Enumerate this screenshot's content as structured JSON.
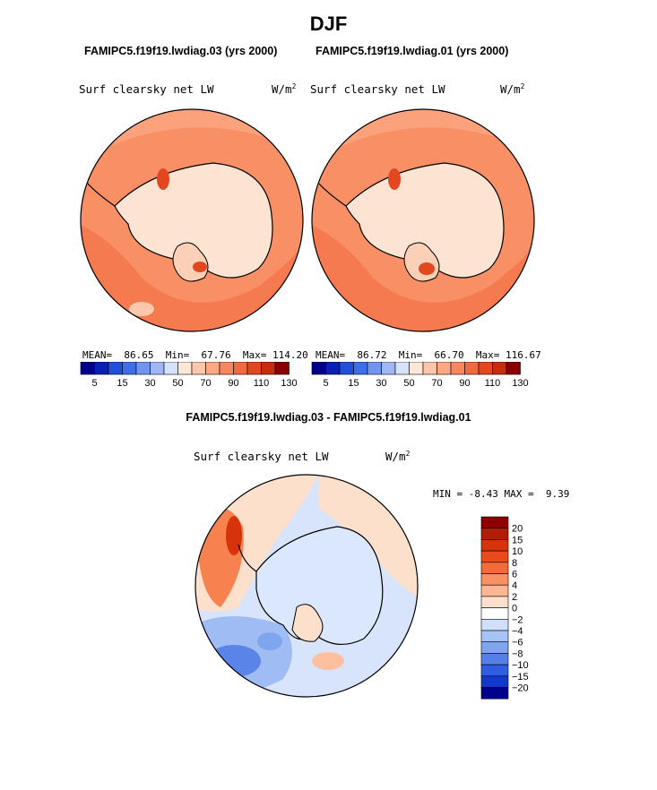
{
  "page": {
    "title": "DJF",
    "left_case": "FAMIPC5.f19f19.lwdiag.03 (yrs 2000)",
    "right_case": "FAMIPC5.f19f19.lwdiag.01 (yrs 2000)",
    "diff_title": "FAMIPC5.f19f19.lwdiag.03 - FAMIPC5.f19f19.lwdiag.01"
  },
  "chart_data": [
    {
      "type": "heatmap",
      "projection": "south-polar-stereographic",
      "title": "Surf clearsky net LW",
      "units": "W/m",
      "units_exp": "2",
      "stats": {
        "mean_label": "MEAN=",
        "mean": "86.65",
        "min_label": "Min=",
        "min": "67.76",
        "max_label": "Max=",
        "max": "114.20"
      },
      "colorbar": {
        "colors": [
          "#00008b",
          "#0a1fb5",
          "#1f4fdb",
          "#3f6fe8",
          "#6f95f0",
          "#9fb8f5",
          "#d4e2fb",
          "#ffe6d5",
          "#fdc6aa",
          "#fba883",
          "#f6875f",
          "#ef6a3e",
          "#e4471e",
          "#c92c0c",
          "#8b0000"
        ],
        "tick_labels": [
          "5",
          "15",
          "30",
          "50",
          "70",
          "90",
          "110",
          "130"
        ]
      },
      "fields": {
        "ocean_value": 95,
        "land_value": 75,
        "peninsula_value": 110
      }
    },
    {
      "type": "heatmap",
      "projection": "south-polar-stereographic",
      "title": "Surf clearsky net LW",
      "units": "W/m",
      "units_exp": "2",
      "stats": {
        "mean_label": "MEAN=",
        "mean": "86.72",
        "min_label": "Min=",
        "min": "66.70",
        "max_label": "Max=",
        "max": "116.67"
      },
      "colorbar": {
        "colors": [
          "#00008b",
          "#0a1fb5",
          "#1f4fdb",
          "#3f6fe8",
          "#6f95f0",
          "#9fb8f5",
          "#d4e2fb",
          "#ffe6d5",
          "#fdc6aa",
          "#fba883",
          "#f6875f",
          "#ef6a3e",
          "#e4471e",
          "#c92c0c",
          "#8b0000"
        ],
        "tick_labels": [
          "5",
          "15",
          "30",
          "50",
          "70",
          "90",
          "110",
          "130"
        ]
      },
      "fields": {
        "ocean_value": 95,
        "land_value": 75,
        "peninsula_value": 110
      }
    },
    {
      "type": "heatmap",
      "projection": "south-polar-stereographic",
      "title": "Surf clearsky net LW",
      "units": "W/m",
      "units_exp": "2",
      "stats": {
        "min_label": "MIN =",
        "min": "-8.43",
        "max_label": "MAX =",
        "max": "9.39"
      },
      "colorbar": {
        "colors": [
          "#8b0000",
          "#b11d05",
          "#d6330a",
          "#ea4a1c",
          "#f56a3a",
          "#fa9066",
          "#fcb694",
          "#fde0cc",
          "#ffffff",
          "#d0e0fb",
          "#a6c3f5",
          "#7ea5ee",
          "#5580e6",
          "#2f5ce0",
          "#1239cc",
          "#00008b"
        ],
        "tick_labels": [
          "20",
          "15",
          "10",
          "8",
          "6",
          "4",
          "2",
          "0",
          "−2",
          "−4",
          "−6",
          "−8",
          "−10",
          "−15",
          "−20"
        ]
      },
      "fields": {
        "min": -8.43,
        "max": 9.39
      }
    }
  ]
}
